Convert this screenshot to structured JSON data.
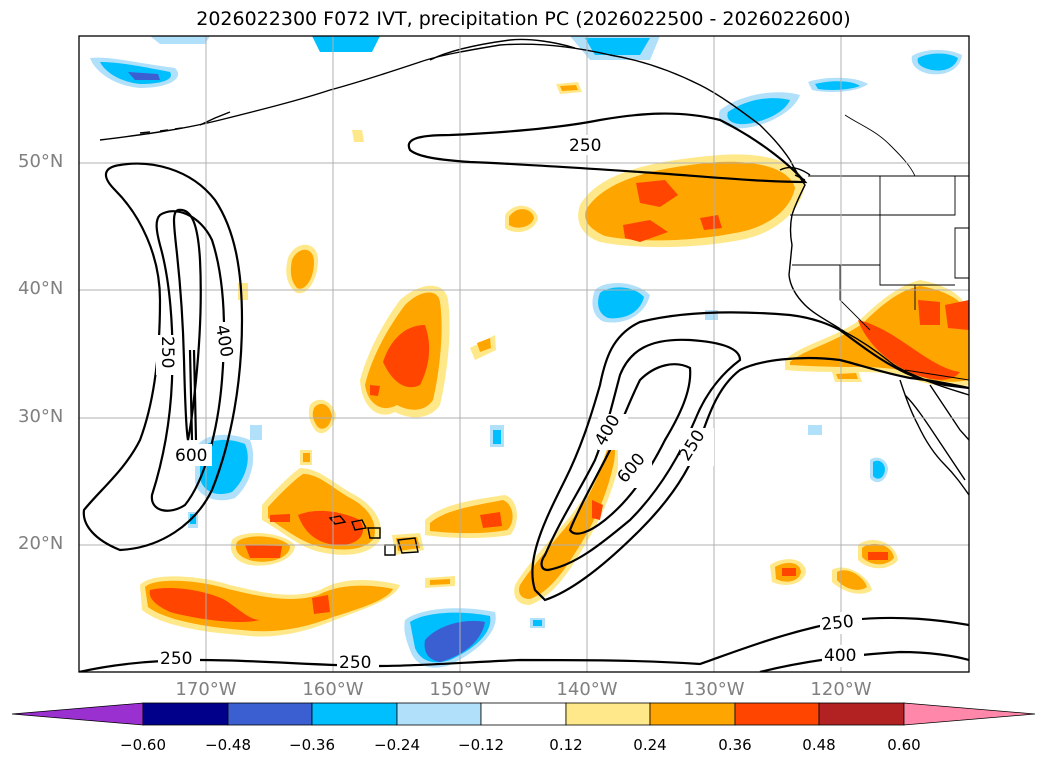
{
  "title": "2026022300 F072 IVT, precipitation PC (2026022500 - 2026022600)",
  "latitude_labels": [
    "50°N",
    "40°N",
    "30°N",
    "20°N"
  ],
  "longitude_labels": [
    "170°W",
    "160°W",
    "150°W",
    "140°W",
    "130°W",
    "120°W"
  ],
  "colorbar": {
    "ticks": [
      "−0.60",
      "−0.48",
      "−0.36",
      "−0.24",
      "−0.12",
      "0.12",
      "0.24",
      "0.36",
      "0.48",
      "0.60"
    ],
    "colors": [
      "#9b30d0",
      "#00008b",
      "#3b5fd0",
      "#00bfff",
      "#b0e0fa",
      "#ffffff",
      "#ffe88a",
      "#ffa500",
      "#ff4500",
      "#b22222",
      "#ff88aa"
    ]
  },
  "ivt_contour_labels": {
    "c250_north": "250",
    "c250_west": "250",
    "c400_west": "400",
    "c600_west": "600",
    "c400_mid": "400",
    "c600_mid": "600",
    "c250_mid": "250",
    "c250_bottom_left": "250",
    "c250_bottom_mid": "250",
    "c250_bottom_right": "250",
    "c400_bottom_right": "400"
  }
}
